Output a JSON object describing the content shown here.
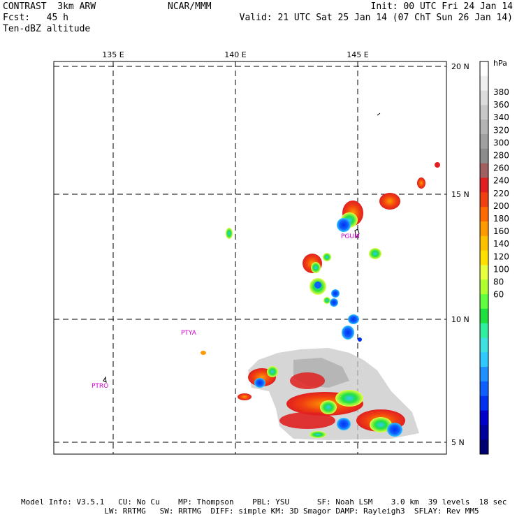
{
  "header": {
    "left_line1": "CONTRAST  3km ARW",
    "left_line2": "Fcst:   45 h",
    "left_line3": "Ten-dBZ altitude",
    "center": "NCAR/MMM",
    "right_line1": "Init: 00 UTC Fri 24 Jan 14",
    "right_line2": "Valid: 21 UTC Sat 25 Jan 14 (07 ChT Sun 26 Jan 14)"
  },
  "map": {
    "lon_labels": [
      "135 E",
      "140 E",
      "145 E"
    ],
    "lat_labels": [
      "20 N",
      "15 N",
      "10 N",
      "5 N"
    ],
    "stations": [
      "PGUM",
      "PTYA",
      "PTRO"
    ]
  },
  "colorbar": {
    "unit": "hPa",
    "labels": [
      "380",
      "360",
      "340",
      "320",
      "300",
      "280",
      "260",
      "240",
      "220",
      "200",
      "180",
      "160",
      "140",
      "120",
      "100",
      "80",
      "60"
    ],
    "colors": [
      "#ffffff",
      "#f0f0f0",
      "#dcdcdc",
      "#c8c8c8",
      "#b4b4b4",
      "#a0a0a0",
      "#8c8c8c",
      "#a06060",
      "#e02020",
      "#f04010",
      "#ff6a00",
      "#ff9900",
      "#ffc000",
      "#ffe000",
      "#e8ff40",
      "#b0ff30",
      "#60ff40",
      "#20e040",
      "#30f0a0",
      "#40e0e0",
      "#30c8ff",
      "#2090ff",
      "#1060ff",
      "#0030f0",
      "#0000c8",
      "#00009c",
      "#000070"
    ]
  },
  "footer": {
    "line1": "Model Info: V3.5.1   CU: No Cu    MP: Thompson    PBL: YSU      SF: Noah LSM    3.0 km  39 levels  18 sec",
    "line2": "                  LW: RRTMG   SW: RRTMG  DIFF: simple KM: 3D Smagor DAMP: Rayleigh3  SFLAY: Rev MM5"
  }
}
